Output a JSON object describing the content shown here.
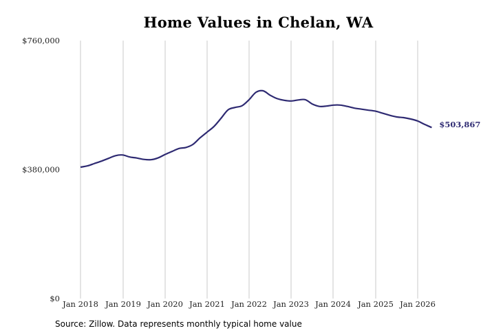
{
  "chart_data": {
    "type": "line",
    "title": "Home Values in Chelan, WA",
    "xlabel": "",
    "ylabel": "",
    "ylim": [
      0,
      760000
    ],
    "y_ticks": [
      0,
      380000,
      760000
    ],
    "y_tick_labels": [
      "$0",
      "$380,000",
      "$760,000"
    ],
    "x_tick_labels": [
      "Jan 2018",
      "Jan 2019",
      "Jan 2020",
      "Jan 2021",
      "Jan 2022",
      "Jan 2023",
      "Jan 2024",
      "Jan 2025",
      "Jan 2026"
    ],
    "grid": "vertical",
    "line_color": "#2e2a72",
    "end_label": "$503,867",
    "series": [
      {
        "x": [
          "2018-01",
          "2018-03",
          "2018-05",
          "2018-07",
          "2018-09",
          "2018-11",
          "2019-01",
          "2019-03",
          "2019-05",
          "2019-07",
          "2019-09",
          "2019-11",
          "2020-01",
          "2020-03",
          "2020-05",
          "2020-07",
          "2020-09",
          "2020-11",
          "2021-01",
          "2021-03",
          "2021-05",
          "2021-07",
          "2021-09",
          "2021-11",
          "2022-01",
          "2022-03",
          "2022-05",
          "2022-07",
          "2022-09",
          "2022-11",
          "2023-01",
          "2023-03",
          "2023-05",
          "2023-07",
          "2023-09",
          "2023-11",
          "2024-01",
          "2024-03",
          "2024-05",
          "2024-07",
          "2024-09",
          "2024-11",
          "2025-01",
          "2025-03",
          "2025-05",
          "2025-07",
          "2025-09",
          "2025-11",
          "2026-01",
          "2026-03",
          "2026-05"
        ],
        "values": [
          387000,
          391000,
          398000,
          405000,
          413000,
          421000,
          423000,
          417000,
          414000,
          410000,
          409000,
          414000,
          424000,
          433000,
          442000,
          445000,
          454000,
          473000,
          490000,
          507000,
          531000,
          556000,
          563000,
          568000,
          586000,
          608000,
          612000,
          599000,
          589000,
          584000,
          582000,
          585000,
          586000,
          573000,
          566000,
          567000,
          570000,
          570000,
          566000,
          561000,
          558000,
          555000,
          552000,
          546000,
          540000,
          535000,
          533000,
          529000,
          523000,
          513000,
          503867
        ]
      }
    ]
  },
  "source": "Source: Zillow. Data represents monthly typical home value"
}
